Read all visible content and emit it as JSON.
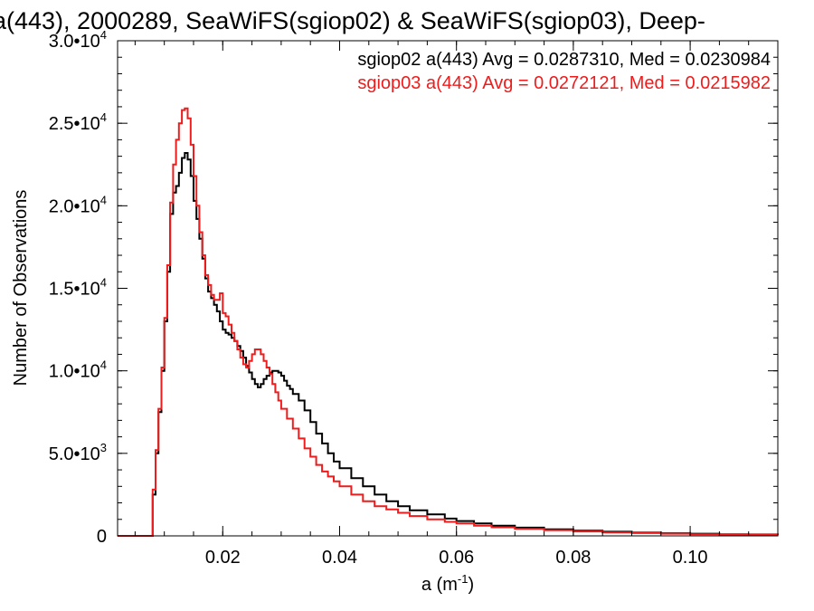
{
  "chart_data": {
    "type": "line",
    "title": "a(443), 2000289, SeaWiFS(sgiop02) & SeaWiFS(sgiop03), Deep-",
    "xlabel": "a (m",
    "xlabel_sup": "-1",
    "xlabel_close": ")",
    "ylabel": "Number of Observations",
    "xlim": [
      0.002,
      0.115
    ],
    "ylim": [
      0,
      30000
    ],
    "x_ticks": [
      {
        "value": 0.02,
        "label": "0.02"
      },
      {
        "value": 0.04,
        "label": "0.04"
      },
      {
        "value": 0.06,
        "label": "0.06"
      },
      {
        "value": 0.08,
        "label": "0.08"
      },
      {
        "value": 0.1,
        "label": "0.10"
      }
    ],
    "y_ticks": [
      {
        "value": 0,
        "mantissa": "0",
        "exp": ""
      },
      {
        "value": 5000,
        "mantissa": "5.0•10",
        "exp": "3"
      },
      {
        "value": 10000,
        "mantissa": "1.0•10",
        "exp": "4"
      },
      {
        "value": 15000,
        "mantissa": "1.5•10",
        "exp": "4"
      },
      {
        "value": 20000,
        "mantissa": "2.0•10",
        "exp": "4"
      },
      {
        "value": 25000,
        "mantissa": "2.5•10",
        "exp": "4"
      },
      {
        "value": 30000,
        "mantissa": "3.0•10",
        "exp": "4"
      }
    ],
    "x_minor_step": 0.005,
    "y_minor_step": 1000,
    "grid": false,
    "legend_placement": "top-right",
    "series": [
      {
        "name": "sgiop02",
        "legend": "sgiop02 a(443) Avg = 0.0287310, Med = 0.0230984",
        "color": "#000000",
        "points": [
          [
            0.002,
            0
          ],
          [
            0.0075,
            0
          ],
          [
            0.008,
            2500
          ],
          [
            0.0085,
            5000
          ],
          [
            0.009,
            7500
          ],
          [
            0.0095,
            10000
          ],
          [
            0.01,
            13000
          ],
          [
            0.0105,
            16000
          ],
          [
            0.011,
            19500
          ],
          [
            0.0115,
            20800
          ],
          [
            0.012,
            21200
          ],
          [
            0.0125,
            22000
          ],
          [
            0.013,
            22900
          ],
          [
            0.0135,
            23200
          ],
          [
            0.014,
            22800
          ],
          [
            0.0145,
            21800
          ],
          [
            0.015,
            20300
          ],
          [
            0.0155,
            19200
          ],
          [
            0.016,
            18000
          ],
          [
            0.0165,
            16800
          ],
          [
            0.017,
            15600
          ],
          [
            0.0175,
            14800
          ],
          [
            0.018,
            14400
          ],
          [
            0.0185,
            14000
          ],
          [
            0.019,
            13600
          ],
          [
            0.0195,
            13000
          ],
          [
            0.02,
            12500
          ],
          [
            0.0205,
            12300
          ],
          [
            0.021,
            12200
          ],
          [
            0.0215,
            12000
          ],
          [
            0.022,
            11800
          ],
          [
            0.0225,
            11500
          ],
          [
            0.023,
            11200
          ],
          [
            0.0235,
            10800
          ],
          [
            0.024,
            10300
          ],
          [
            0.0245,
            9900
          ],
          [
            0.025,
            9500
          ],
          [
            0.0255,
            9200
          ],
          [
            0.026,
            9000
          ],
          [
            0.0265,
            9200
          ],
          [
            0.027,
            9500
          ],
          [
            0.0275,
            9700
          ],
          [
            0.028,
            9900
          ],
          [
            0.0285,
            10000
          ],
          [
            0.029,
            10000
          ],
          [
            0.0295,
            9900
          ],
          [
            0.03,
            9700
          ],
          [
            0.0305,
            9400
          ],
          [
            0.031,
            9100
          ],
          [
            0.0315,
            8900
          ],
          [
            0.032,
            8600
          ],
          [
            0.033,
            8200
          ],
          [
            0.034,
            7600
          ],
          [
            0.035,
            6900
          ],
          [
            0.036,
            6200
          ],
          [
            0.037,
            5600
          ],
          [
            0.038,
            5000
          ],
          [
            0.039,
            4500
          ],
          [
            0.04,
            4100
          ],
          [
            0.042,
            3500
          ],
          [
            0.044,
            3000
          ],
          [
            0.046,
            2500
          ],
          [
            0.048,
            2100
          ],
          [
            0.05,
            1800
          ],
          [
            0.052,
            1550
          ],
          [
            0.055,
            1300
          ],
          [
            0.058,
            1050
          ],
          [
            0.06,
            900
          ],
          [
            0.063,
            750
          ],
          [
            0.066,
            620
          ],
          [
            0.07,
            500
          ],
          [
            0.075,
            400
          ],
          [
            0.08,
            320
          ],
          [
            0.085,
            250
          ],
          [
            0.09,
            200
          ],
          [
            0.095,
            160
          ],
          [
            0.1,
            130
          ],
          [
            0.105,
            100
          ],
          [
            0.11,
            80
          ],
          [
            0.115,
            60
          ]
        ]
      },
      {
        "name": "sgiop03",
        "legend": "sgiop03 a(443) Avg = 0.0272121, Med = 0.0215982",
        "color": "#ee1c1c",
        "points": [
          [
            0.002,
            0
          ],
          [
            0.0075,
            0
          ],
          [
            0.008,
            2800
          ],
          [
            0.0085,
            5200
          ],
          [
            0.009,
            7700
          ],
          [
            0.0095,
            10200
          ],
          [
            0.01,
            13200
          ],
          [
            0.0105,
            16400
          ],
          [
            0.011,
            20200
          ],
          [
            0.0115,
            22500
          ],
          [
            0.012,
            24000
          ],
          [
            0.0125,
            25000
          ],
          [
            0.013,
            25800
          ],
          [
            0.0135,
            25900
          ],
          [
            0.014,
            25300
          ],
          [
            0.0145,
            23700
          ],
          [
            0.015,
            21800
          ],
          [
            0.0155,
            20000
          ],
          [
            0.016,
            18400
          ],
          [
            0.0165,
            17000
          ],
          [
            0.017,
            15800
          ],
          [
            0.0175,
            15200
          ],
          [
            0.018,
            14600
          ],
          [
            0.0185,
            14300
          ],
          [
            0.019,
            14300
          ],
          [
            0.0195,
            14700
          ],
          [
            0.02,
            13500
          ],
          [
            0.0205,
            13300
          ],
          [
            0.021,
            12800
          ],
          [
            0.0215,
            12300
          ],
          [
            0.022,
            11800
          ],
          [
            0.0225,
            11300
          ],
          [
            0.023,
            10800
          ],
          [
            0.0235,
            10400
          ],
          [
            0.024,
            10200
          ],
          [
            0.0245,
            10600
          ],
          [
            0.025,
            11000
          ],
          [
            0.0255,
            11300
          ],
          [
            0.026,
            11300
          ],
          [
            0.0265,
            11000
          ],
          [
            0.027,
            10600
          ],
          [
            0.0275,
            10200
          ],
          [
            0.028,
            9800
          ],
          [
            0.0285,
            9200
          ],
          [
            0.029,
            8700
          ],
          [
            0.0295,
            8200
          ],
          [
            0.03,
            7700
          ],
          [
            0.031,
            7100
          ],
          [
            0.032,
            6500
          ],
          [
            0.033,
            5900
          ],
          [
            0.034,
            5300
          ],
          [
            0.035,
            4800
          ],
          [
            0.036,
            4300
          ],
          [
            0.037,
            3900
          ],
          [
            0.038,
            3600
          ],
          [
            0.039,
            3300
          ],
          [
            0.04,
            3000
          ],
          [
            0.042,
            2500
          ],
          [
            0.044,
            2100
          ],
          [
            0.046,
            1800
          ],
          [
            0.048,
            1600
          ],
          [
            0.05,
            1400
          ],
          [
            0.052,
            1200
          ],
          [
            0.055,
            1000
          ],
          [
            0.058,
            850
          ],
          [
            0.06,
            750
          ],
          [
            0.063,
            620
          ],
          [
            0.066,
            520
          ],
          [
            0.07,
            420
          ],
          [
            0.075,
            340
          ],
          [
            0.08,
            270
          ],
          [
            0.085,
            210
          ],
          [
            0.09,
            170
          ],
          [
            0.095,
            130
          ],
          [
            0.1,
            100
          ],
          [
            0.105,
            80
          ],
          [
            0.11,
            60
          ],
          [
            0.115,
            45
          ]
        ]
      }
    ]
  }
}
